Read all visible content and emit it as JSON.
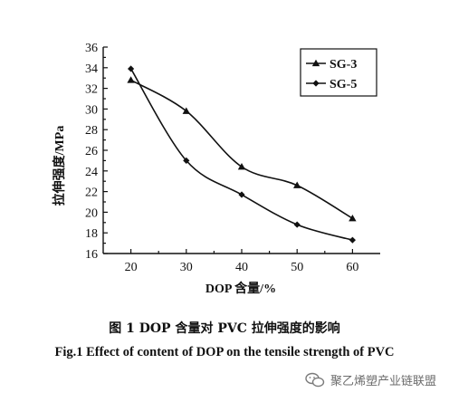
{
  "chart_data": {
    "type": "line",
    "title": "",
    "xlabel": "DOP 含量/%",
    "ylabel": "拉伸强度/MPa",
    "x": [
      20,
      30,
      40,
      50,
      60
    ],
    "xticks": [
      "20",
      "30",
      "40",
      "50",
      "60"
    ],
    "yticks": [
      "16",
      "18",
      "20",
      "22",
      "24",
      "26",
      "28",
      "30",
      "32",
      "34",
      "36"
    ],
    "xlim": [
      15,
      65
    ],
    "ylim": [
      16,
      36
    ],
    "grid": false,
    "legend_position": "top-right",
    "series": [
      {
        "name": "SG-3",
        "marker": "triangle",
        "values": [
          32.8,
          29.8,
          24.4,
          22.6,
          19.4
        ]
      },
      {
        "name": "SG-5",
        "marker": "diamond",
        "values": [
          33.9,
          25.0,
          21.7,
          18.8,
          17.3
        ]
      }
    ]
  },
  "captions": {
    "chinese": "图 1  DOP 含量对 PVC 拉伸强度的影响",
    "english": "Fig.1 Effect of content of DOP on the tensile strength of PVC"
  },
  "watermark": {
    "text": "聚乙烯塑产业链联盟",
    "icon": "wechat-icon"
  }
}
